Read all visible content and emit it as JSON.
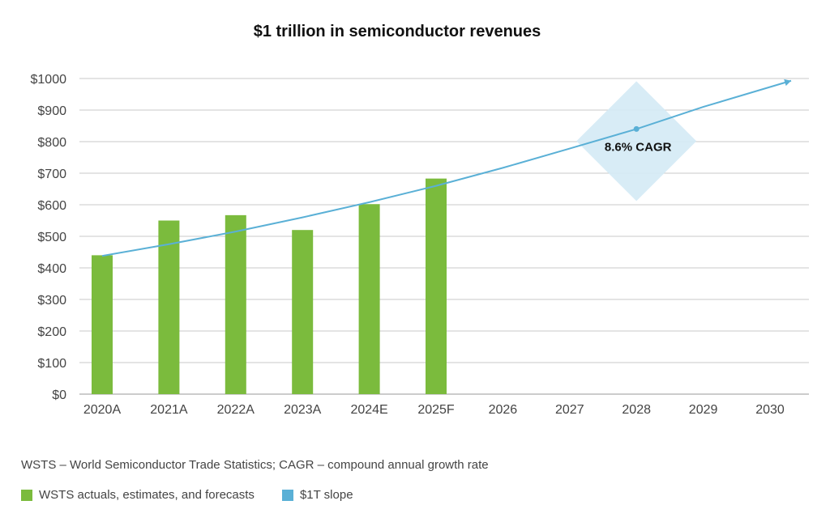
{
  "chart_data": {
    "type": "bar",
    "title": "$1 trillion in semiconductor revenues",
    "xlabel": "",
    "ylabel": "",
    "categories": [
      "2020A",
      "2021A",
      "2022A",
      "2023A",
      "2024E",
      "2025F",
      "2026",
      "2027",
      "2028",
      "2029",
      "2030"
    ],
    "y_ticks": [
      "$0",
      "$100",
      "$200",
      "$300",
      "$400",
      "$500",
      "$600",
      "$700",
      "$800",
      "$900",
      "$1000"
    ],
    "ylim": [
      0,
      1000
    ],
    "grid": true,
    "series": [
      {
        "name": "WSTS actuals, estimates, and forecasts",
        "type": "bar",
        "color": "#7bbb3d",
        "values": [
          440,
          550,
          567,
          520,
          602,
          683,
          null,
          null,
          null,
          null,
          null
        ]
      },
      {
        "name": "$1T slope",
        "type": "line",
        "color": "#5ab0d6",
        "values": [
          438,
          475,
          515,
          560,
          608,
          660,
          717,
          778,
          840,
          910,
          993
        ]
      }
    ],
    "annotations": [
      {
        "text": "8.6% CAGR",
        "category": "2028",
        "value": 840,
        "color": "#d4eaf5"
      }
    ]
  },
  "footnote": "WSTS – World Semiconductor Trade Statistics; CAGR – compound annual growth rate",
  "legend": [
    {
      "label": "WSTS actuals, estimates, and forecasts",
      "color": "#7bbb3d"
    },
    {
      "label": "$1T slope",
      "color": "#5ab0d6"
    }
  ]
}
